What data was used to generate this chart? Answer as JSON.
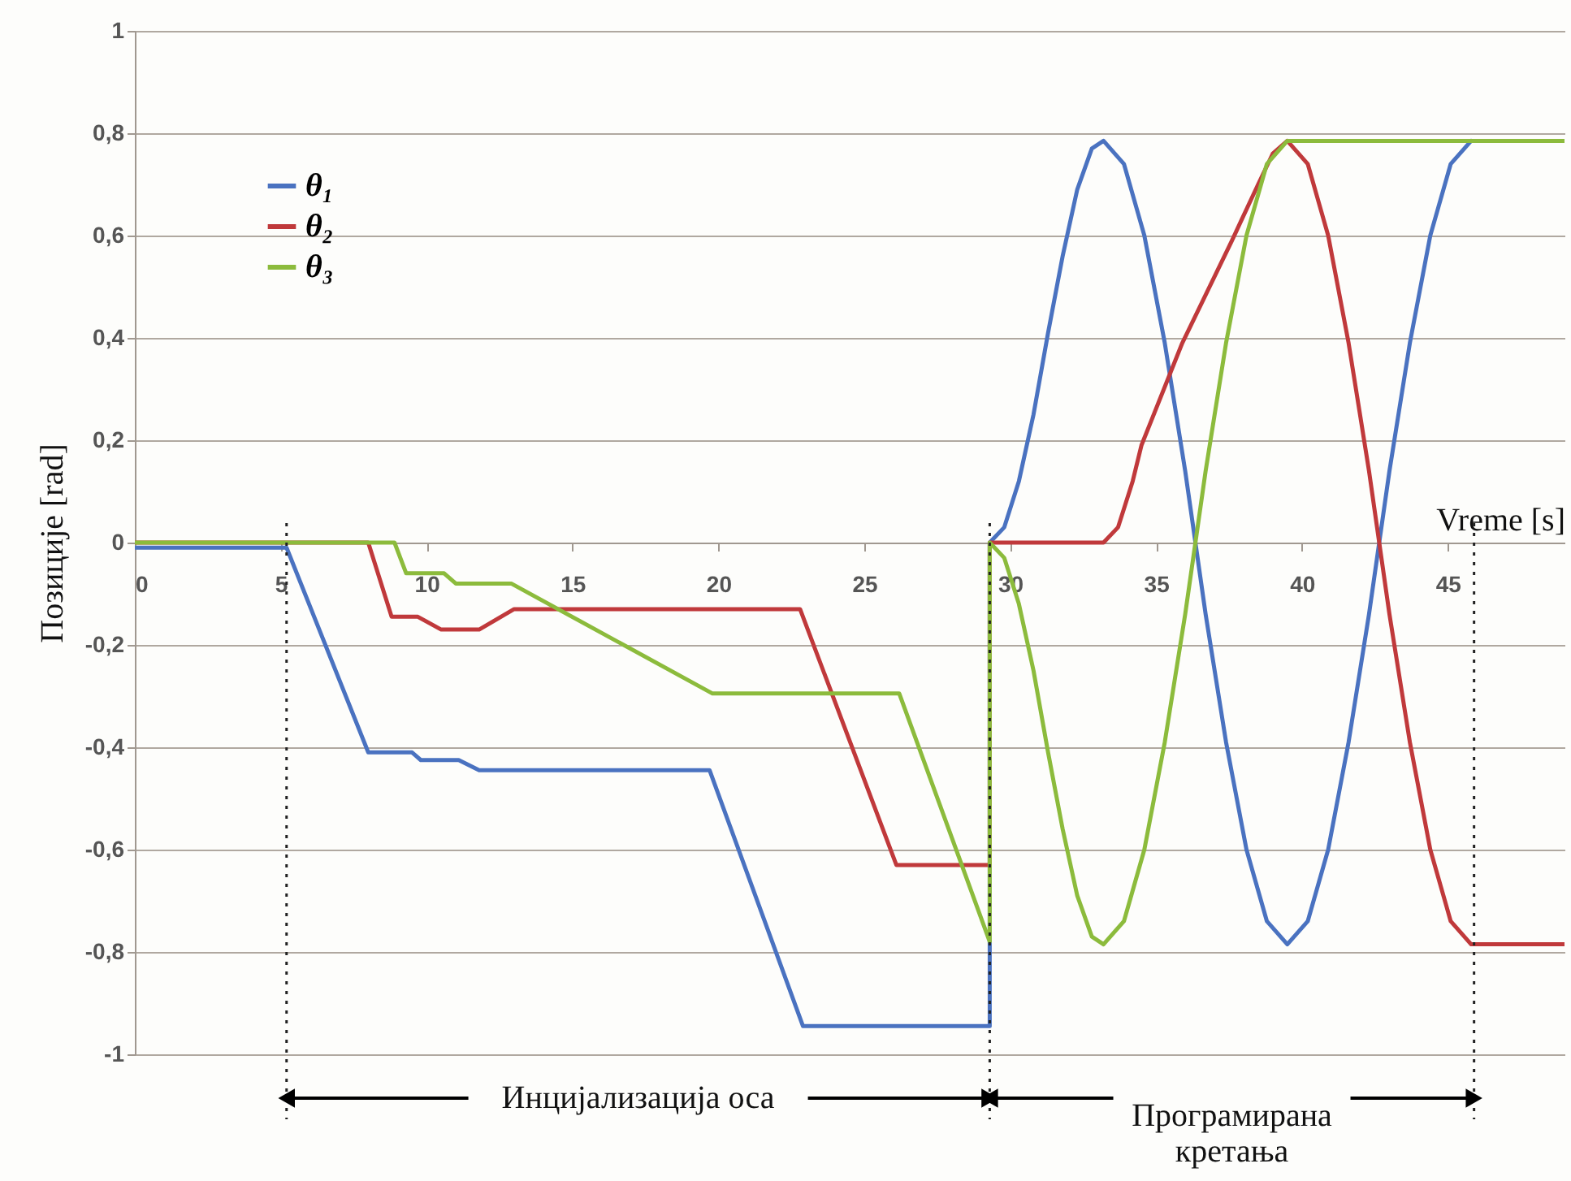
{
  "chart_data": {
    "type": "line",
    "xlabel": "Vreme [s]",
    "ylabel": "Позиције [rad]",
    "xlim": [
      0,
      49
    ],
    "ylim": [
      -1,
      1
    ],
    "xticks": [
      0,
      5,
      10,
      15,
      20,
      25,
      30,
      35,
      40,
      45
    ],
    "yticks": [
      {
        "value": -1,
        "label": "-1"
      },
      {
        "value": -0.8,
        "label": "-0,8"
      },
      {
        "value": -0.6,
        "label": "-0,6"
      },
      {
        "value": -0.4,
        "label": "-0,4"
      },
      {
        "value": -0.2,
        "label": "-0,2"
      },
      {
        "value": 0,
        "label": "0"
      },
      {
        "value": 0.2,
        "label": "0,2"
      },
      {
        "value": 0.4,
        "label": "0,4"
      },
      {
        "value": 0.6,
        "label": "0,6"
      },
      {
        "value": 0.8,
        "label": "0,8"
      },
      {
        "value": 1,
        "label": "1"
      }
    ],
    "grid": "y",
    "legend": "top left",
    "line_style": "solid",
    "series": [
      {
        "name": "θ₁",
        "color": "#4a72c0",
        "x": [
          0,
          5.2,
          8.0,
          9.5,
          9.8,
          11.1,
          11.8,
          19.7,
          22.9,
          29.3,
          29.3,
          29.8,
          30.3,
          30.8,
          31.3,
          31.8,
          32.3,
          32.8,
          33.2,
          33.9,
          34.6,
          35.3,
          36.0,
          36.7,
          37.4,
          38.1,
          38.8,
          39.5,
          40.2,
          40.9,
          41.6,
          42.3,
          43.0,
          43.7,
          44.4,
          45.1,
          45.8
        ],
        "values": [
          -0.01,
          -0.01,
          -0.41,
          -0.41,
          -0.425,
          -0.425,
          -0.445,
          -0.445,
          -0.945,
          -0.945,
          0,
          0.03,
          0.12,
          0.25,
          0.41,
          0.56,
          0.69,
          0.77,
          0.785,
          0.74,
          0.6,
          0.39,
          0.14,
          -0.14,
          -0.39,
          -0.6,
          -0.74,
          -0.785,
          -0.74,
          -0.6,
          -0.39,
          -0.14,
          0.14,
          0.39,
          0.6,
          0.74,
          0.785
        ]
      },
      {
        "name": "θ₂",
        "color": "#c0393b",
        "x": [
          0,
          8.0,
          8.8,
          9.7,
          10.5,
          11.8,
          13.0,
          22.8,
          26.1,
          29.3,
          29.3,
          33.2,
          33.7,
          34.2,
          34.5,
          35.9,
          37.6,
          38.5,
          39.0,
          39.5,
          40.2,
          40.9,
          41.6,
          42.3,
          43.0,
          43.7,
          44.4,
          45.1,
          45.8,
          49
        ],
        "values": [
          0,
          0,
          -0.145,
          -0.145,
          -0.17,
          -0.17,
          -0.13,
          -0.13,
          -0.63,
          -0.63,
          0,
          0,
          0.03,
          0.12,
          0.19,
          0.39,
          0.59,
          0.7,
          0.76,
          0.785,
          0.74,
          0.6,
          0.39,
          0.14,
          -0.14,
          -0.39,
          -0.6,
          -0.74,
          -0.785,
          -0.785
        ]
      },
      {
        "name": "θ₃",
        "color": "#8cbb3c",
        "x": [
          0,
          8.9,
          9.3,
          10.6,
          11.0,
          12.9,
          19.8,
          26.2,
          29.3,
          29.3,
          29.8,
          30.3,
          30.8,
          31.3,
          31.8,
          32.3,
          32.8,
          33.2,
          33.9,
          34.6,
          35.3,
          36.0,
          36.7,
          37.4,
          38.1,
          38.8,
          39.5,
          49
        ],
        "values": [
          0,
          0,
          -0.06,
          -0.06,
          -0.08,
          -0.08,
          -0.295,
          -0.295,
          -0.78,
          0,
          -0.03,
          -0.12,
          -0.25,
          -0.41,
          -0.56,
          -0.69,
          -0.77,
          -0.785,
          -0.74,
          -0.6,
          -0.39,
          -0.14,
          0.14,
          0.39,
          0.6,
          0.74,
          0.785,
          0.785
        ]
      }
    ],
    "ref_lines": [
      {
        "axis": "x",
        "value": 5.2,
        "line_style": "dotted"
      },
      {
        "axis": "x",
        "value": 29.3,
        "line_style": "dotted"
      },
      {
        "axis": "x",
        "value": 45.9,
        "line_style": "dotted"
      }
    ],
    "annotations": [
      "Инцијализација оса",
      "Програмирана кретања"
    ]
  }
}
